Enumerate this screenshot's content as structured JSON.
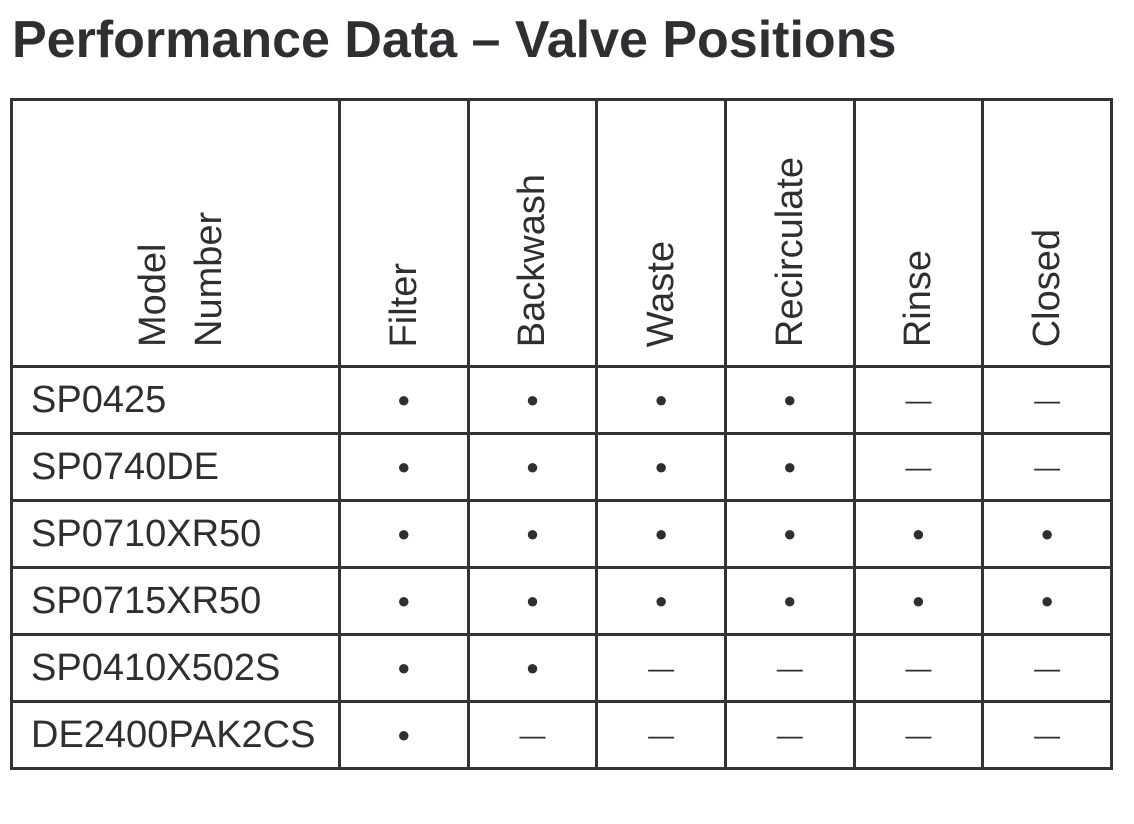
{
  "title": "Performance Data – Valve Positions",
  "table": {
    "columns": [
      "Model Number",
      "Filter",
      "Backwash",
      "Waste",
      "Recirculate",
      "Rinse",
      "Closed"
    ],
    "rows": [
      [
        "SP0425",
        "●",
        "●",
        "●",
        "●",
        "—",
        "—"
      ],
      [
        "SP0740DE",
        "●",
        "●",
        "●",
        "●",
        "—",
        "—"
      ],
      [
        "SP0710XR50",
        "●",
        "●",
        "●",
        "●",
        "●",
        "●"
      ],
      [
        "SP0715XR50",
        "●",
        "●",
        "●",
        "●",
        "●",
        "●"
      ],
      [
        "SP0410X502S",
        "●",
        "●",
        "—",
        "—",
        "—",
        "—"
      ],
      [
        "DE2400PAK2CS",
        "●",
        "—",
        "—",
        "—",
        "—",
        "—"
      ]
    ]
  }
}
